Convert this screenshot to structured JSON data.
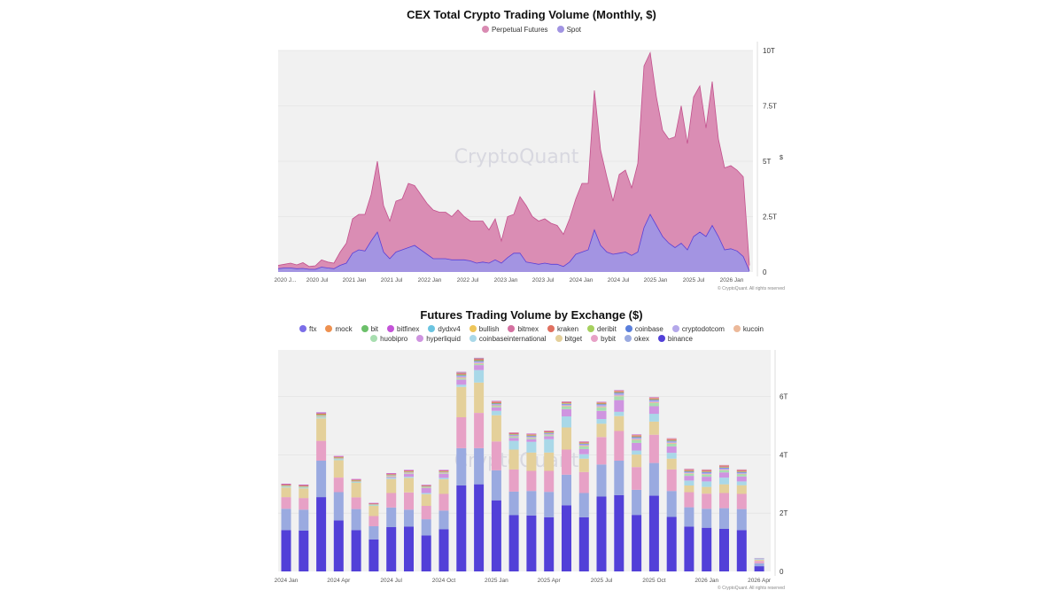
{
  "chart_data": [
    {
      "type": "area",
      "title": "CEX Total Crypto Trading Volume (Monthly, $)",
      "ylabel": "$",
      "ylim": [
        0,
        10
      ],
      "y_unit": "T",
      "yticks": [
        "0",
        "2.5T",
        "5T",
        "7.5T",
        "10T"
      ],
      "ytick_values": [
        0,
        2.5,
        5,
        7.5,
        10
      ],
      "xticks": [
        "2020 J...",
        "2020 Jul",
        "2021 Jan",
        "2021 Jul",
        "2022 Jan",
        "2022 Jul",
        "2023 Jan",
        "2023 Jul",
        "2024 Jan",
        "2024 Jul",
        "2025 Jan",
        "2025 Jul",
        "2026 Jan"
      ],
      "grid": true,
      "legend_position": "top",
      "watermark": "CryptoQuant",
      "copyright": "© CryptoQuant. All rights reserved",
      "series": [
        {
          "name": "Perpetual Futures",
          "color": "#d98bb2",
          "line_color": "#c2508c",
          "values": [
            0.3,
            0.35,
            0.4,
            0.32,
            0.42,
            0.25,
            0.28,
            0.55,
            0.45,
            0.4,
            0.9,
            1.3,
            2.4,
            2.6,
            2.6,
            3.5,
            5.0,
            3.0,
            2.3,
            3.2,
            3.3,
            4.0,
            3.9,
            3.5,
            3.1,
            2.8,
            2.7,
            2.7,
            2.5,
            2.8,
            2.5,
            2.3,
            2.3,
            2.3,
            1.9,
            2.4,
            1.4,
            2.5,
            2.6,
            3.4,
            3.0,
            2.5,
            2.3,
            2.4,
            2.2,
            2.1,
            1.7,
            2.4,
            3.3,
            4.0,
            4.0,
            8.2,
            5.5,
            4.3,
            3.2,
            4.4,
            4.6,
            3.8,
            4.9,
            9.3,
            9.9,
            7.9,
            6.4,
            6.0,
            6.1,
            7.5,
            5.8,
            7.9,
            8.4,
            6.5,
            8.6,
            6.0,
            4.7,
            4.8,
            4.6,
            4.3,
            0.3
          ]
        },
        {
          "name": "Spot",
          "color": "#a194e2",
          "line_color": "#5a3fd6",
          "values": [
            0.15,
            0.18,
            0.18,
            0.15,
            0.16,
            0.12,
            0.12,
            0.22,
            0.18,
            0.15,
            0.3,
            0.4,
            0.85,
            1.0,
            0.95,
            1.4,
            1.8,
            0.9,
            0.6,
            0.9,
            1.0,
            1.1,
            1.2,
            1.0,
            0.8,
            0.6,
            0.6,
            0.6,
            0.55,
            0.55,
            0.55,
            0.5,
            0.4,
            0.45,
            0.4,
            0.55,
            0.4,
            0.65,
            0.85,
            0.85,
            0.45,
            0.4,
            0.35,
            0.4,
            0.35,
            0.35,
            0.25,
            0.45,
            0.8,
            0.9,
            1.0,
            1.9,
            1.2,
            0.9,
            0.8,
            0.85,
            0.9,
            0.75,
            0.9,
            2.0,
            2.6,
            2.1,
            1.6,
            1.3,
            1.1,
            1.3,
            1.0,
            1.6,
            1.8,
            1.6,
            2.1,
            1.6,
            1.0,
            1.05,
            0.95,
            0.7,
            0.05
          ]
        }
      ]
    },
    {
      "type": "bar",
      "stacked": true,
      "title": "Futures Trading Volume by Exchange ($)",
      "ylim": [
        0,
        7.6
      ],
      "y_unit": "T",
      "yticks": [
        "0",
        "2T",
        "4T",
        "6T"
      ],
      "ytick_values": [
        0,
        2,
        4,
        6
      ],
      "categories": [
        "2024 Jan",
        "2024 Feb",
        "2024 Mar",
        "2024 Apr",
        "2024 May",
        "2024 Jun",
        "2024 Jul",
        "2024 Aug",
        "2024 Sep",
        "2024 Oct",
        "2024 Nov",
        "2024 Dec",
        "2025 Jan",
        "2025 Feb",
        "2025 Mar",
        "2025 Apr",
        "2025 May",
        "2025 Jun",
        "2025 Jul",
        "2025 Aug",
        "2025 Sep",
        "2025 Oct",
        "2025 Nov",
        "2025 Dec",
        "2026 Jan",
        "2026 Feb",
        "2026 Mar",
        "2026 Apr"
      ],
      "xticks": [
        "2024 Jan",
        "2024 Apr",
        "2024 Jul",
        "2024 Oct",
        "2025 Jan",
        "2025 Apr",
        "2025 Jul",
        "2025 Oct",
        "2026 Jan",
        "2026 Apr"
      ],
      "grid": true,
      "legend_position": "top",
      "watermark": "CryptoQuant",
      "copyright": "© CryptoQuant. All rights reserved",
      "legend": [
        "ftx",
        "mock",
        "bit",
        "bitfinex",
        "dydxv4",
        "bullish",
        "bitmex",
        "kraken",
        "deribit",
        "coinbase",
        "cryptodotcom",
        "kucoin",
        "huobipro",
        "hyperliquid",
        "coinbaseinternational",
        "bitget",
        "bybit",
        "okex",
        "binance"
      ],
      "series": [
        {
          "name": "binance",
          "color": "#5240d8",
          "values": [
            1.42,
            1.4,
            2.55,
            1.75,
            1.42,
            1.1,
            1.52,
            1.54,
            1.23,
            1.45,
            2.95,
            2.99,
            2.44,
            1.93,
            1.92,
            1.86,
            2.27,
            1.86,
            2.57,
            2.62,
            1.94,
            2.6,
            1.87,
            1.54,
            1.5,
            1.46,
            1.42,
            0.18
          ]
        },
        {
          "name": "okex",
          "color": "#9aaae0",
          "values": [
            0.73,
            0.72,
            1.25,
            0.97,
            0.72,
            0.45,
            0.67,
            0.58,
            0.56,
            0.64,
            1.28,
            1.24,
            1.03,
            0.81,
            0.84,
            0.87,
            1.05,
            0.83,
            1.1,
            1.18,
            0.86,
            1.12,
            0.89,
            0.66,
            0.65,
            0.71,
            0.72,
            0.1
          ]
        },
        {
          "name": "bybit",
          "color": "#e7a1c6",
          "values": [
            0.4,
            0.4,
            0.68,
            0.5,
            0.4,
            0.35,
            0.5,
            0.59,
            0.46,
            0.57,
            1.06,
            1.21,
            0.99,
            0.76,
            0.69,
            0.72,
            0.86,
            0.72,
            0.94,
            1.02,
            0.78,
            0.97,
            0.74,
            0.52,
            0.52,
            0.52,
            0.52,
            0.08
          ]
        },
        {
          "name": "bitget",
          "color": "#e4d09a",
          "values": [
            0.33,
            0.33,
            0.77,
            0.6,
            0.5,
            0.35,
            0.48,
            0.5,
            0.4,
            0.5,
            1.04,
            1.04,
            0.9,
            0.68,
            0.63,
            0.63,
            0.76,
            0.46,
            0.46,
            0.51,
            0.43,
            0.45,
            0.37,
            0.23,
            0.23,
            0.3,
            0.3,
            0.04
          ]
        },
        {
          "name": "coinbaseinternational",
          "color": "#a9d8e8",
          "values": [
            0.02,
            0.02,
            0.03,
            0.03,
            0.02,
            0.02,
            0.04,
            0.04,
            0.04,
            0.05,
            0.08,
            0.43,
            0.15,
            0.3,
            0.37,
            0.46,
            0.38,
            0.15,
            0.16,
            0.15,
            0.14,
            0.27,
            0.2,
            0.17,
            0.19,
            0.23,
            0.13,
            0.02
          ]
        },
        {
          "name": "hyperliquid",
          "color": "#cf94e0",
          "values": [
            0,
            0,
            0,
            0,
            0,
            0,
            0.03,
            0.1,
            0.17,
            0.14,
            0.17,
            0.17,
            0.12,
            0.1,
            0.09,
            0.1,
            0.25,
            0.18,
            0.28,
            0.4,
            0.26,
            0.26,
            0.22,
            0.16,
            0.16,
            0.18,
            0.17,
            0.02
          ]
        },
        {
          "name": "huobipro",
          "color": "#a8deb0",
          "values": [
            0.02,
            0.02,
            0.03,
            0.02,
            0.02,
            0.02,
            0.02,
            0.02,
            0.02,
            0.02,
            0.04,
            0.04,
            0.04,
            0.04,
            0.04,
            0.04,
            0.09,
            0.09,
            0.12,
            0.13,
            0.1,
            0.11,
            0.09,
            0.07,
            0.07,
            0.07,
            0.07,
            0.01
          ]
        },
        {
          "name": "kucoin",
          "color": "#ecb99a",
          "values": [
            0.01,
            0.01,
            0.02,
            0.01,
            0.01,
            0.01,
            0.02,
            0.02,
            0.01,
            0.02,
            0.04,
            0.03,
            0.03,
            0.02,
            0.02,
            0.02,
            0.03,
            0.03,
            0.03,
            0.03,
            0.03,
            0.03,
            0.03,
            0.02,
            0.02,
            0.02,
            0.02,
            0
          ]
        },
        {
          "name": "cryptodotcom",
          "color": "#b4a8ea",
          "values": [
            0.01,
            0.01,
            0.02,
            0.01,
            0.01,
            0.01,
            0.02,
            0.02,
            0.02,
            0.02,
            0.06,
            0.06,
            0.05,
            0.04,
            0.04,
            0.04,
            0.05,
            0.05,
            0.06,
            0.07,
            0.05,
            0.06,
            0.05,
            0.04,
            0.05,
            0.05,
            0.04,
            0.01
          ]
        },
        {
          "name": "coinbase",
          "color": "#5a7fdc",
          "values": [
            0,
            0,
            0,
            0,
            0,
            0,
            0,
            0,
            0,
            0,
            0.01,
            0.01,
            0.01,
            0.01,
            0.01,
            0.01,
            0.01,
            0.01,
            0.02,
            0.02,
            0.02,
            0.02,
            0.02,
            0.02,
            0.02,
            0.02,
            0.02,
            0
          ]
        },
        {
          "name": "deribit",
          "color": "#a6d05e",
          "values": [
            0.02,
            0.02,
            0.03,
            0.02,
            0.02,
            0.01,
            0.02,
            0.02,
            0.02,
            0.02,
            0.03,
            0.03,
            0.02,
            0.02,
            0.02,
            0.02,
            0.02,
            0.02,
            0.02,
            0.02,
            0.02,
            0.02,
            0.02,
            0.02,
            0.02,
            0.02,
            0.02,
            0
          ]
        },
        {
          "name": "kraken",
          "color": "#e07060",
          "values": [
            0.02,
            0.02,
            0.03,
            0.02,
            0.02,
            0.01,
            0.02,
            0.02,
            0.02,
            0.02,
            0.03,
            0.03,
            0.03,
            0.02,
            0.02,
            0.02,
            0.02,
            0.02,
            0.02,
            0.02,
            0.02,
            0.02,
            0.02,
            0.02,
            0.02,
            0.02,
            0.02,
            0
          ]
        },
        {
          "name": "bitmex",
          "color": "#d470a0",
          "values": [
            0.02,
            0.02,
            0.03,
            0.02,
            0.02,
            0.01,
            0.02,
            0.02,
            0.01,
            0.02,
            0.03,
            0.02,
            0.02,
            0.02,
            0.02,
            0.02,
            0.02,
            0.02,
            0.02,
            0.02,
            0.02,
            0.02,
            0.02,
            0.02,
            0.02,
            0.02,
            0.02,
            0
          ]
        },
        {
          "name": "bullish",
          "color": "#eec65a",
          "values": [
            0,
            0,
            0,
            0,
            0,
            0,
            0,
            0,
            0,
            0,
            0.01,
            0.01,
            0.01,
            0.01,
            0.01,
            0.01,
            0.01,
            0.01,
            0.01,
            0.02,
            0.02,
            0.02,
            0.02,
            0.02,
            0.02,
            0.02,
            0.02,
            0
          ]
        },
        {
          "name": "dydxv4",
          "color": "#6bc4e0",
          "values": [
            0,
            0,
            0.01,
            0,
            0,
            0,
            0,
            0,
            0,
            0,
            0.01,
            0.01,
            0,
            0,
            0,
            0,
            0,
            0,
            0,
            0,
            0,
            0,
            0,
            0,
            0,
            0,
            0,
            0
          ]
        },
        {
          "name": "bitfinex",
          "color": "#c453d8",
          "values": [
            0.01,
            0.01,
            0.01,
            0.01,
            0.01,
            0.01,
            0.01,
            0.01,
            0.01,
            0.01,
            0.01,
            0.01,
            0.01,
            0.01,
            0.01,
            0.01,
            0.01,
            0.01,
            0.01,
            0.01,
            0.01,
            0.01,
            0.01,
            0.01,
            0.01,
            0.01,
            0.01,
            0
          ]
        },
        {
          "name": "bit",
          "color": "#6cc06a",
          "values": [
            0,
            0,
            0,
            0,
            0,
            0,
            0,
            0,
            0,
            0,
            0,
            0,
            0,
            0,
            0,
            0,
            0,
            0,
            0,
            0,
            0,
            0,
            0,
            0,
            0,
            0,
            0,
            0
          ]
        },
        {
          "name": "mock",
          "color": "#ee9150",
          "values": [
            0,
            0,
            0,
            0,
            0,
            0,
            0,
            0,
            0,
            0,
            0,
            0,
            0,
            0,
            0,
            0,
            0,
            0,
            0,
            0,
            0,
            0,
            0,
            0,
            0,
            0,
            0,
            0
          ]
        },
        {
          "name": "ftx",
          "color": "#7b6ee8",
          "values": [
            0,
            0,
            0,
            0,
            0,
            0,
            0,
            0,
            0,
            0,
            0,
            0,
            0,
            0,
            0,
            0,
            0,
            0,
            0,
            0,
            0,
            0,
            0,
            0,
            0,
            0,
            0,
            0
          ]
        }
      ]
    }
  ]
}
